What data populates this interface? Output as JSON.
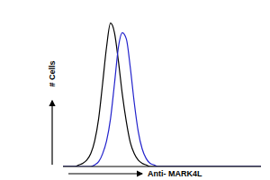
{
  "chart_data": {
    "type": "line",
    "x_label": "Anti- MARK4L",
    "y_label": "# Cells",
    "x": [
      0,
      2,
      4,
      6,
      8,
      10,
      12,
      14,
      16,
      18,
      20,
      22,
      24,
      26,
      28,
      30,
      32,
      34,
      36,
      38,
      40,
      42,
      44,
      46,
      48,
      50,
      55,
      60,
      70,
      80,
      90,
      100
    ],
    "series": [
      {
        "color": "#000000",
        "values": [
          0,
          0,
          0,
          0,
          1,
          2,
          4,
          8,
          16,
          30,
          52,
          75,
          90,
          84,
          66,
          45,
          28,
          15,
          8,
          4,
          2,
          1,
          0,
          0,
          0,
          0,
          0,
          0,
          0,
          0,
          0,
          0
        ]
      },
      {
        "color": "#2222cc",
        "values": [
          0,
          0,
          0,
          0,
          0,
          0,
          0,
          0,
          1,
          3,
          8,
          16,
          30,
          52,
          75,
          84,
          80,
          62,
          40,
          22,
          11,
          5,
          2,
          1,
          0,
          0,
          0,
          0,
          0,
          0,
          0,
          0
        ]
      }
    ],
    "xlim": [
      0,
      100
    ],
    "ylim": [
      0,
      100
    ],
    "tick_labels": false,
    "grid": false
  }
}
